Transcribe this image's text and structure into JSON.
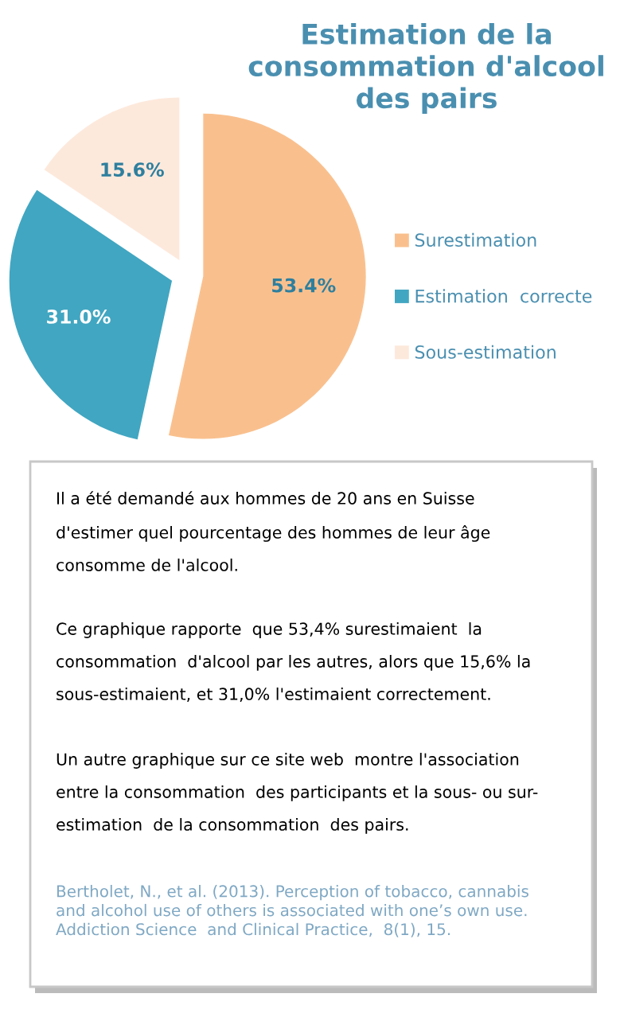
{
  "chart_data": {
    "type": "pie",
    "title": "Estimation de la\nconsommation d'alcool\ndes pairs",
    "categories": [
      "Surestimation",
      "Estimation  correcte",
      "Sous-estimation"
    ],
    "values": [
      53.4,
      31.0,
      15.6
    ],
    "colors": [
      "#f9c08e",
      "#41a6c1",
      "#fde9dc"
    ],
    "value_labels": [
      "53.4%",
      "31.0%",
      "15.6%"
    ],
    "legend": "right",
    "annotations": [
      "Il a été demandé aux hommes de 20 ans en Suisse\nd'estimer quel pourcentage des hommes de leur âge\nconsomme de l'alcool.",
      "Ce graphique rapporte  que 53,4% surestimaient  la\nconsommation  d'alcool par les autres, alors que 15,6% la\nsous-estimaient, et 31,0% l'estimaient correctement.",
      "Un autre graphique sur ce site web  montre l'association\nentre la consommation  des participants et la sous- ou sur-\nestimation  de la consommation  des pairs.",
      "Bertholet, N., et al. (2013). Perception of tobacco, cannabis\nand alcohol use of others is associated with one’s own use.\nAddiction Science  and Clinical Practice,  8(1), 15."
    ]
  }
}
